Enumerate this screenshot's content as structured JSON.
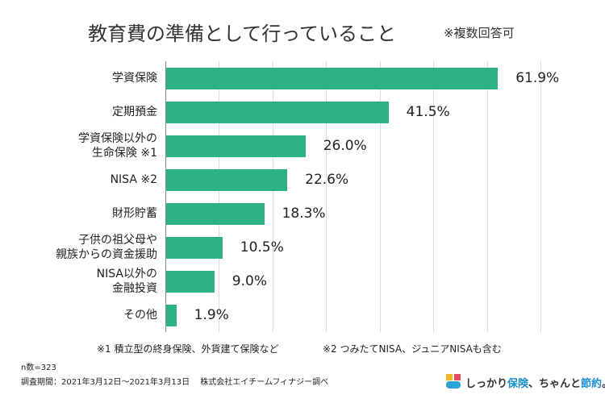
{
  "chart_data": {
    "type": "bar",
    "orientation": "horizontal",
    "title": "教育費の準備として行っていること",
    "subtitle": "※複数回答可",
    "categories": [
      "学資保険",
      "定期預金",
      "学資保険以外の\n生命保険 ※1",
      "NISA ※2",
      "財形貯蓄",
      "子供の祖父母や\n親族からの資金援助",
      "NISA以外の\n金融投資",
      "その他"
    ],
    "values": [
      61.9,
      41.5,
      26.0,
      22.6,
      18.3,
      10.5,
      9.0,
      1.9
    ],
    "value_labels": [
      "61.9%",
      "41.5%",
      "26.0%",
      "22.6%",
      "18.3%",
      "10.5%",
      "9.0%",
      "1.9%"
    ],
    "color": "#2fb283",
    "xlim": [
      0,
      70
    ],
    "xticks": [
      0,
      10,
      20,
      30,
      40,
      50,
      60,
      70
    ],
    "grid": true,
    "notes": [
      "※1 積立型の終身保険、外貨建て保険など",
      "※2 つみたてNISA、ジュニアNISAも含む"
    ],
    "sample_size": "n数=323",
    "source": "調査期間：2021年3月12日〜2021年3月13日　 株式会社エイチームフィナジー調べ"
  },
  "brand": [
    "しっかり",
    "保険",
    "、ちゃんと",
    "節約",
    "。"
  ]
}
